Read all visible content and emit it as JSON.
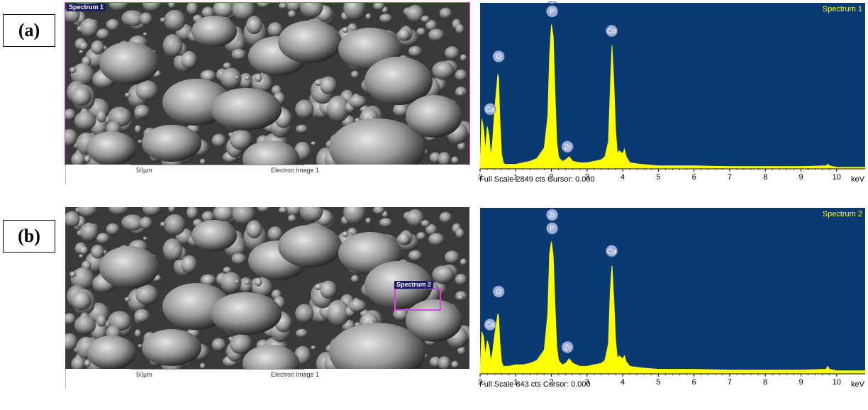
{
  "panels": [
    {
      "label": "(a)",
      "sem": {
        "scale_label": "50µm",
        "image_name": "Electron Image 1",
        "tag": "Spectrum 1"
      },
      "eds": {
        "spectrum_title": "Spectrum 1",
        "footer": "Full Scale 2849 cts Cursor: 0.000",
        "unit": "keV",
        "ticks": [
          "0",
          "1",
          "2",
          "3",
          "4",
          "5",
          "6",
          "7",
          "8",
          "9",
          "10"
        ]
      }
    },
    {
      "label": "(b)",
      "sem": {
        "scale_label": "50µm",
        "image_name": "Electron Image 1",
        "tag": "Spectrum 2"
      },
      "eds": {
        "spectrum_title": "Spectrum 2",
        "footer": "Full Scale 843 cts Cursor: 0.000",
        "unit": "keV",
        "ticks": [
          "0",
          "1",
          "2",
          "3",
          "4",
          "5",
          "6",
          "7",
          "8",
          "9",
          "10"
        ]
      }
    }
  ],
  "colors": {
    "eds_background": "#0a3a73",
    "eds_trace": "#ffff00",
    "sem_box": "#e040e0",
    "label_marker": "#a0b0d8"
  },
  "chart_data": [
    {
      "type": "area",
      "title": "Spectrum 1",
      "xlabel": "keV",
      "ylabel": "",
      "xlim": [
        0,
        10.8
      ],
      "ylim": [
        0,
        1
      ],
      "series": [
        {
          "x": [
            0.0,
            0.05,
            0.1,
            0.15,
            0.2,
            0.25,
            0.3,
            0.35,
            0.4,
            0.45,
            0.5,
            0.52,
            0.55,
            0.6,
            0.65,
            0.7,
            0.8,
            1.0,
            1.2,
            1.4,
            1.6,
            1.8,
            1.9,
            1.95,
            2.0,
            2.05,
            2.1,
            2.15,
            2.2,
            2.3,
            2.4,
            2.5,
            2.6,
            2.8,
            3.0,
            3.2,
            3.4,
            3.5,
            3.6,
            3.65,
            3.7,
            3.75,
            3.8,
            3.85,
            3.9,
            4.0,
            4.05,
            4.1,
            4.2,
            4.5,
            5.0,
            6.0,
            7.0,
            8.0,
            9.0,
            9.7,
            9.75,
            9.8,
            10.0,
            10.8
          ],
          "y": [
            0.02,
            0.33,
            0.26,
            0.12,
            0.28,
            0.22,
            0.08,
            0.18,
            0.36,
            0.5,
            0.63,
            0.6,
            0.35,
            0.1,
            0.04,
            0.03,
            0.03,
            0.03,
            0.04,
            0.05,
            0.07,
            0.14,
            0.35,
            0.75,
            0.96,
            0.88,
            0.5,
            0.18,
            0.08,
            0.05,
            0.06,
            0.08,
            0.05,
            0.04,
            0.04,
            0.05,
            0.06,
            0.08,
            0.18,
            0.52,
            0.82,
            0.58,
            0.25,
            0.1,
            0.12,
            0.1,
            0.13,
            0.08,
            0.04,
            0.03,
            0.02,
            0.02,
            0.015,
            0.015,
            0.015,
            0.02,
            0.03,
            0.02,
            0.01,
            0.01
          ]
        }
      ],
      "peak_labels": [
        {
          "element": "Ca",
          "x": 0.28,
          "y": 0.35
        },
        {
          "element": "O",
          "x": 0.52,
          "y": 0.7
        },
        {
          "element": "P",
          "x": 2.02,
          "y": 1.0
        },
        {
          "element": "Zr",
          "x": 2.02,
          "y": 1.09
        },
        {
          "element": "Zr",
          "x": 2.45,
          "y": 0.1
        },
        {
          "element": "Ca",
          "x": 3.69,
          "y": 0.87
        }
      ]
    },
    {
      "type": "area",
      "title": "Spectrum 2",
      "xlabel": "keV",
      "ylabel": "",
      "xlim": [
        0,
        10.8
      ],
      "ylim": [
        0,
        1
      ],
      "series": [
        {
          "x": [
            0.0,
            0.05,
            0.1,
            0.15,
            0.2,
            0.25,
            0.3,
            0.35,
            0.4,
            0.45,
            0.5,
            0.52,
            0.55,
            0.6,
            0.65,
            0.7,
            0.8,
            1.0,
            1.2,
            1.4,
            1.6,
            1.8,
            1.9,
            1.95,
            2.0,
            2.05,
            2.1,
            2.15,
            2.2,
            2.3,
            2.4,
            2.5,
            2.6,
            2.8,
            3.0,
            3.2,
            3.4,
            3.5,
            3.6,
            3.65,
            3.7,
            3.75,
            3.8,
            3.85,
            3.9,
            4.0,
            4.05,
            4.1,
            4.2,
            4.5,
            5.0,
            6.0,
            7.0,
            8.0,
            9.0,
            9.7,
            9.75,
            9.8,
            10.0,
            10.8
          ],
          "y": [
            0.02,
            0.28,
            0.24,
            0.12,
            0.22,
            0.18,
            0.08,
            0.14,
            0.24,
            0.32,
            0.4,
            0.38,
            0.22,
            0.08,
            0.05,
            0.05,
            0.05,
            0.06,
            0.06,
            0.07,
            0.09,
            0.16,
            0.4,
            0.8,
            0.88,
            0.78,
            0.45,
            0.18,
            0.09,
            0.06,
            0.07,
            0.1,
            0.07,
            0.05,
            0.05,
            0.06,
            0.07,
            0.09,
            0.2,
            0.55,
            0.72,
            0.5,
            0.22,
            0.1,
            0.12,
            0.1,
            0.12,
            0.08,
            0.05,
            0.04,
            0.03,
            0.03,
            0.025,
            0.025,
            0.025,
            0.03,
            0.05,
            0.03,
            0.02,
            0.02
          ]
        }
      ],
      "peak_labels": [
        {
          "element": "Ca",
          "x": 0.28,
          "y": 0.28
        },
        {
          "element": "O",
          "x": 0.52,
          "y": 0.5
        },
        {
          "element": "P",
          "x": 2.02,
          "y": 0.92
        },
        {
          "element": "Zr",
          "x": 2.02,
          "y": 1.01
        },
        {
          "element": "Zr",
          "x": 2.45,
          "y": 0.13
        },
        {
          "element": "Ca",
          "x": 3.69,
          "y": 0.77
        }
      ]
    }
  ]
}
